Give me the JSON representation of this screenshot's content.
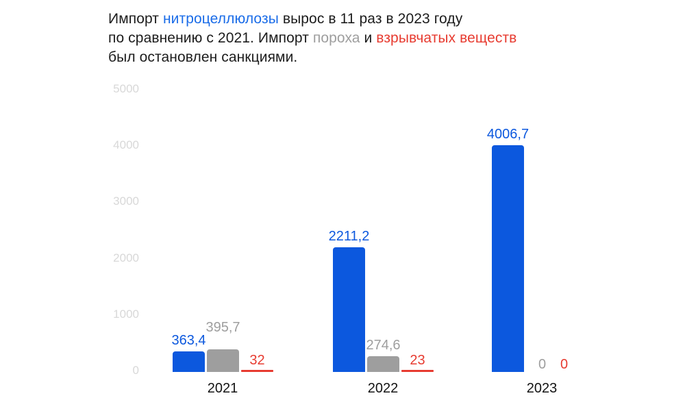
{
  "headline": {
    "segments": [
      {
        "text": "Импорт ",
        "color": "black",
        "break_after": false
      },
      {
        "text": "нитроцеллюлозы",
        "color": "link_blue",
        "break_after": false
      },
      {
        "text": " вырос в 11 раз в 2023 году",
        "color": "black",
        "break_after": true
      },
      {
        "text": "по сравнению с 2021. Импорт ",
        "color": "black",
        "break_after": false
      },
      {
        "text": "пороха",
        "color": "gray",
        "break_after": false
      },
      {
        "text": " и ",
        "color": "black",
        "break_after": false
      },
      {
        "text": "взрывчатых веществ",
        "color": "red",
        "break_after": true
      },
      {
        "text": "был остановлен санкциями.",
        "color": "black",
        "break_after": false
      }
    ]
  },
  "colors": {
    "black": "#1c1c1c",
    "link_blue": "#1a6ce8",
    "bar_blue": "#0c58de",
    "gray": "#9e9e9e",
    "red": "#e73b30",
    "axis_tick": "#d8d8d8",
    "year_label": "#131313"
  },
  "chart_data": {
    "type": "bar",
    "title": "Импорт нитроцеллюлозы вырос в 11 раз в 2023 году по сравнению с 2021. Импорт пороха и взрывчатых веществ был остановлен санкциями.",
    "categories": [
      "2021",
      "2022",
      "2023"
    ],
    "series": [
      {
        "name": "нитроцеллюлоза",
        "color_key": "bar_blue",
        "values": [
          363.4,
          2211.2,
          4006.7
        ],
        "labels": [
          "363,4",
          "2211,2",
          "4006,7"
        ]
      },
      {
        "name": "порох",
        "color_key": "gray",
        "values": [
          395.7,
          274.6,
          0
        ],
        "labels": [
          "395,7",
          "274,6",
          "0"
        ]
      },
      {
        "name": "взрывчатые вещества",
        "color_key": "red",
        "values": [
          32,
          23,
          0
        ],
        "labels": [
          "32",
          "23",
          "0"
        ]
      }
    ],
    "y_axis": {
      "ticks": [
        0,
        1000,
        2000,
        3000,
        4000,
        5000
      ],
      "tick_labels": [
        "0",
        "1000",
        "2000",
        "3000",
        "4000",
        "5000"
      ],
      "ylim": [
        0,
        5000
      ],
      "gridlines": false
    },
    "legend": "none"
  }
}
